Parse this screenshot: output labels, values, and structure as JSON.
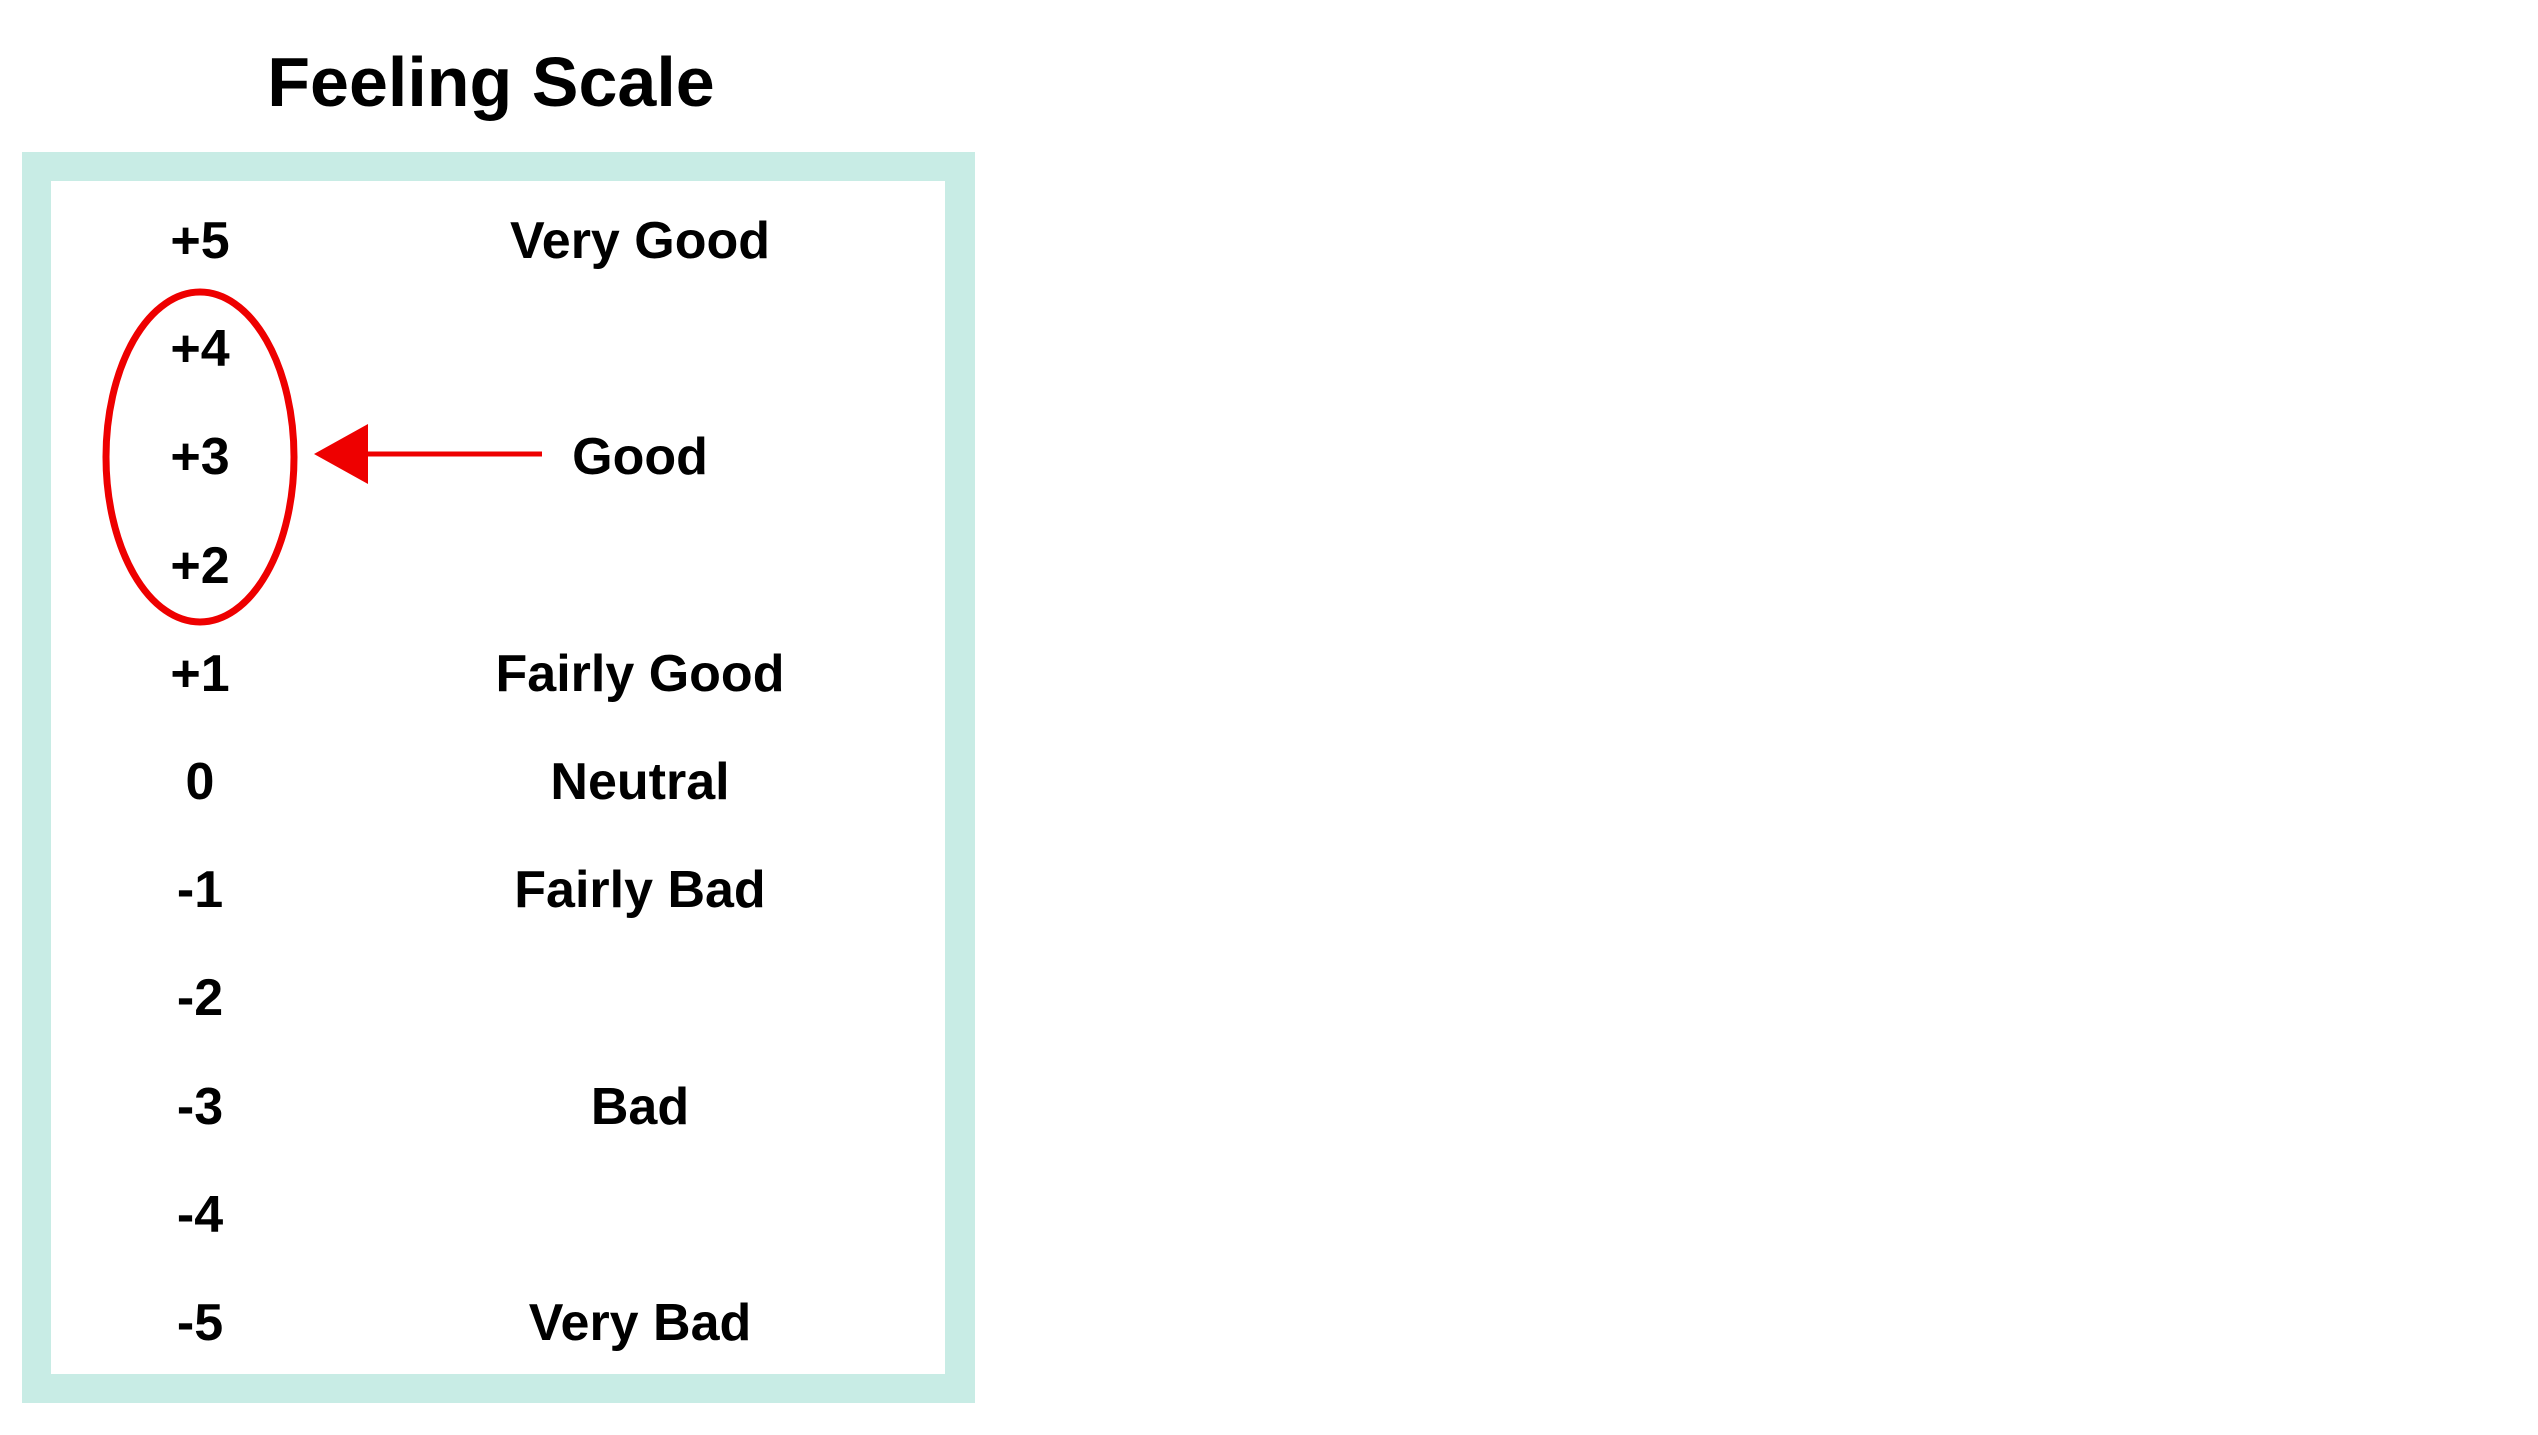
{
  "title": "Feeling Scale",
  "rows": [
    {
      "value": "+5",
      "label": "Very Good"
    },
    {
      "value": "+4",
      "label": ""
    },
    {
      "value": "+3",
      "label": "Good"
    },
    {
      "value": "+2",
      "label": ""
    },
    {
      "value": "+1",
      "label": "Fairly Good"
    },
    {
      "value": "0",
      "label": "Neutral"
    },
    {
      "value": "-1",
      "label": "Fairly Bad"
    },
    {
      "value": "-2",
      "label": ""
    },
    {
      "value": "-3",
      "label": "Bad"
    },
    {
      "value": "-4",
      "label": ""
    },
    {
      "value": "-5",
      "label": "Very Bad"
    }
  ],
  "annotation": {
    "highlighted_values": [
      "+4",
      "+3",
      "+2"
    ],
    "points_from": "Good",
    "color": "#ee0000"
  },
  "colors": {
    "frame": "#c8ece5",
    "text": "#000000"
  }
}
